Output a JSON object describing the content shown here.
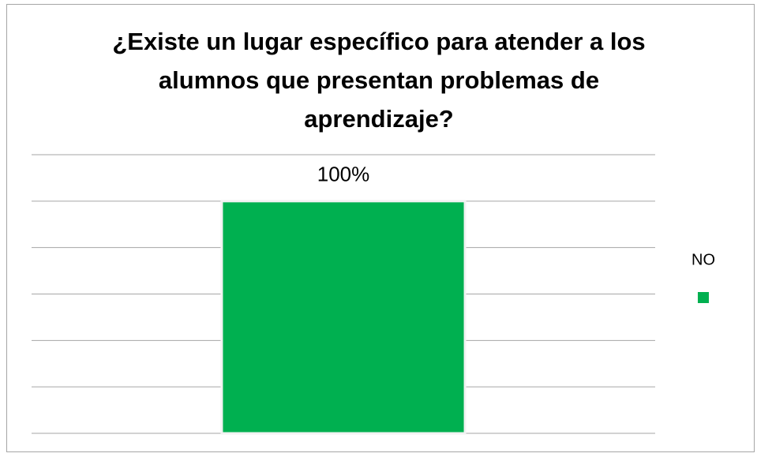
{
  "chart_data": {
    "type": "bar",
    "title": "¿Existe un lugar específico para atender a los alumnos que presentan problemas de aprendizaje?",
    "categories": [
      null
    ],
    "series": [
      {
        "name": "NO",
        "color": "#00b050",
        "values": [
          100
        ],
        "value_labels": [
          "100%"
        ]
      }
    ],
    "ylim": [
      0,
      120
    ],
    "yticks": [
      0,
      20,
      40,
      60,
      80,
      100,
      120
    ],
    "grid": true,
    "legend": "right"
  }
}
